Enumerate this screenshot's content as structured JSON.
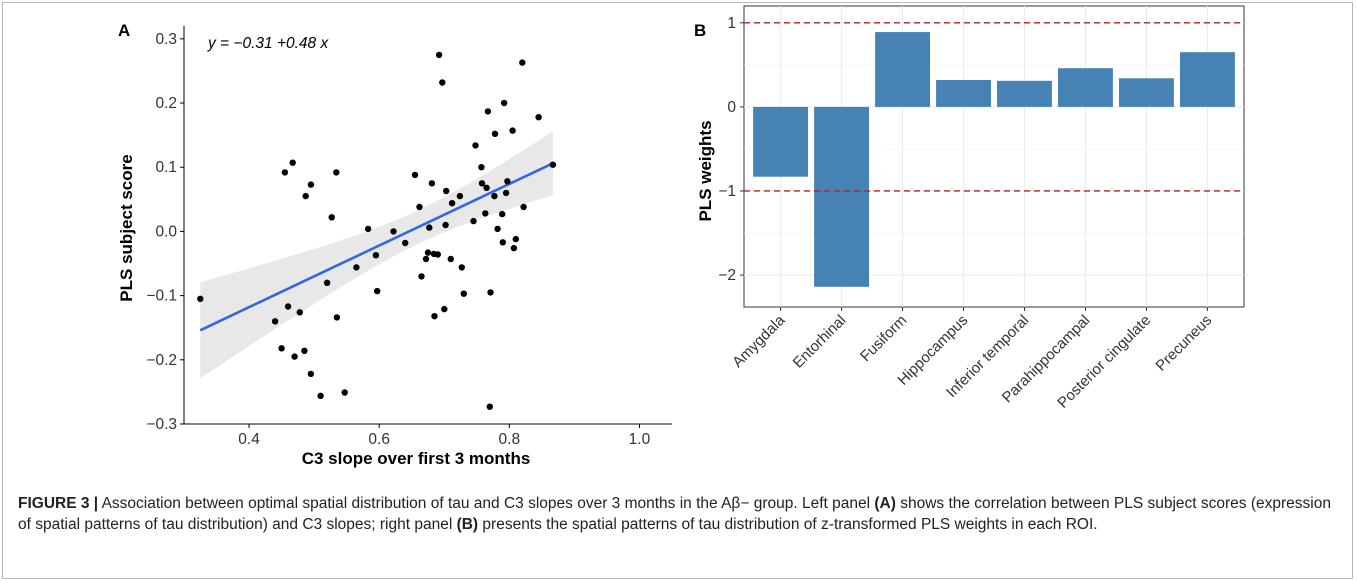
{
  "chart_data": [
    {
      "type": "scatter",
      "panel_label": "A",
      "equation_text": "y = −0.31 +0.48 x",
      "xlabel": "C3 slope over first 3 months",
      "ylabel": "PLS subject score",
      "xlim": [
        0.3,
        1.05
      ],
      "ylim": [
        -0.3,
        0.32
      ],
      "x_ticks": [
        0.4,
        0.6,
        0.8,
        1.0
      ],
      "x_tick_labels": [
        "0.4",
        "0.6",
        "0.8",
        "1.0"
      ],
      "y_ticks": [
        -0.3,
        -0.2,
        -0.1,
        0.0,
        0.1,
        0.2,
        0.3
      ],
      "y_tick_labels": [
        "−0.3",
        "−0.2",
        "−0.1",
        "0.0",
        "0.1",
        "0.2",
        "0.3"
      ],
      "grid": false,
      "regression": {
        "intercept": -0.31,
        "slope": 0.48,
        "x_range": [
          0.325,
          0.867
        ],
        "color": "#3366e0",
        "ci_color": "#d9d9d9"
      },
      "points": [
        {
          "x": 0.325,
          "y": -0.105
        },
        {
          "x": 0.44,
          "y": -0.14
        },
        {
          "x": 0.45,
          "y": -0.182
        },
        {
          "x": 0.455,
          "y": 0.092
        },
        {
          "x": 0.46,
          "y": -0.117
        },
        {
          "x": 0.467,
          "y": 0.107
        },
        {
          "x": 0.47,
          "y": -0.195
        },
        {
          "x": 0.478,
          "y": -0.126
        },
        {
          "x": 0.485,
          "y": -0.186
        },
        {
          "x": 0.487,
          "y": 0.055
        },
        {
          "x": 0.495,
          "y": 0.073
        },
        {
          "x": 0.495,
          "y": -0.222
        },
        {
          "x": 0.51,
          "y": -0.256
        },
        {
          "x": 0.52,
          "y": -0.08
        },
        {
          "x": 0.527,
          "y": 0.022
        },
        {
          "x": 0.534,
          "y": 0.092
        },
        {
          "x": 0.535,
          "y": -0.134
        },
        {
          "x": 0.547,
          "y": -0.251
        },
        {
          "x": 0.565,
          "y": -0.056
        },
        {
          "x": 0.583,
          "y": 0.004
        },
        {
          "x": 0.595,
          "y": -0.037
        },
        {
          "x": 0.597,
          "y": -0.093
        },
        {
          "x": 0.622,
          "y": 0.0
        },
        {
          "x": 0.64,
          "y": -0.018
        },
        {
          "x": 0.655,
          "y": 0.088
        },
        {
          "x": 0.662,
          "y": 0.038
        },
        {
          "x": 0.665,
          "y": -0.07
        },
        {
          "x": 0.672,
          "y": -0.043
        },
        {
          "x": 0.675,
          "y": -0.033
        },
        {
          "x": 0.677,
          "y": 0.006
        },
        {
          "x": 0.681,
          "y": 0.075
        },
        {
          "x": 0.684,
          "y": -0.035
        },
        {
          "x": 0.685,
          "y": -0.132
        },
        {
          "x": 0.69,
          "y": -0.036
        },
        {
          "x": 0.692,
          "y": 0.275
        },
        {
          "x": 0.697,
          "y": 0.232
        },
        {
          "x": 0.7,
          "y": -0.121
        },
        {
          "x": 0.702,
          "y": 0.01
        },
        {
          "x": 0.703,
          "y": 0.063
        },
        {
          "x": 0.71,
          "y": -0.043
        },
        {
          "x": 0.712,
          "y": 0.044
        },
        {
          "x": 0.724,
          "y": 0.055
        },
        {
          "x": 0.727,
          "y": -0.056
        },
        {
          "x": 0.73,
          "y": -0.097
        },
        {
          "x": 0.745,
          "y": 0.016
        },
        {
          "x": 0.748,
          "y": 0.134
        },
        {
          "x": 0.757,
          "y": 0.1
        },
        {
          "x": 0.758,
          "y": 0.075
        },
        {
          "x": 0.763,
          "y": 0.028
        },
        {
          "x": 0.765,
          "y": 0.068
        },
        {
          "x": 0.767,
          "y": 0.187
        },
        {
          "x": 0.77,
          "y": -0.273
        },
        {
          "x": 0.771,
          "y": -0.095
        },
        {
          "x": 0.777,
          "y": 0.055
        },
        {
          "x": 0.778,
          "y": 0.152
        },
        {
          "x": 0.782,
          "y": 0.004
        },
        {
          "x": 0.789,
          "y": 0.027
        },
        {
          "x": 0.79,
          "y": -0.017
        },
        {
          "x": 0.792,
          "y": 0.2
        },
        {
          "x": 0.795,
          "y": 0.06
        },
        {
          "x": 0.797,
          "y": 0.078
        },
        {
          "x": 0.805,
          "y": 0.157
        },
        {
          "x": 0.807,
          "y": -0.026
        },
        {
          "x": 0.81,
          "y": -0.012
        },
        {
          "x": 0.82,
          "y": 0.263
        },
        {
          "x": 0.822,
          "y": 0.038
        },
        {
          "x": 0.845,
          "y": 0.178
        },
        {
          "x": 0.867,
          "y": 0.104
        }
      ]
    },
    {
      "type": "bar",
      "panel_label": "B",
      "ylabel": "PLS weights",
      "xlabel": "",
      "ylim": [
        -2.38,
        1.2
      ],
      "y_ticks": [
        -2,
        -1,
        0,
        1
      ],
      "y_tick_labels": [
        "−2",
        "−1",
        "0",
        "1"
      ],
      "grid": true,
      "bar_color": "#4682b4",
      "reference_lines": {
        "values": [
          1,
          -1
        ],
        "color": "#b22222",
        "style": "dashed"
      },
      "categories": [
        "Amygdala",
        "Entorhinal",
        "Fusiform",
        "Hippocampus",
        "Inferior temporal",
        "Parahippocampal",
        "Posterior cingulate",
        "Precuneus"
      ],
      "values": [
        -0.83,
        -2.14,
        0.89,
        0.32,
        0.31,
        0.46,
        0.34,
        0.65
      ]
    }
  ],
  "caption": {
    "figure_label": "FIGURE 3 |",
    "text_1": " Association between optimal spatial distribution of tau and C3 slopes over 3 months in the Aβ− group. Left panel ",
    "ref_a": "(A)",
    "text_2": " shows the correlation between PLS subject scores (expression of spatial patterns of tau distribution) and C3 slopes; right panel ",
    "ref_b": "(B)",
    "text_3": " presents the spatial patterns of tau distribution of z-transformed PLS weights in each ROI."
  }
}
